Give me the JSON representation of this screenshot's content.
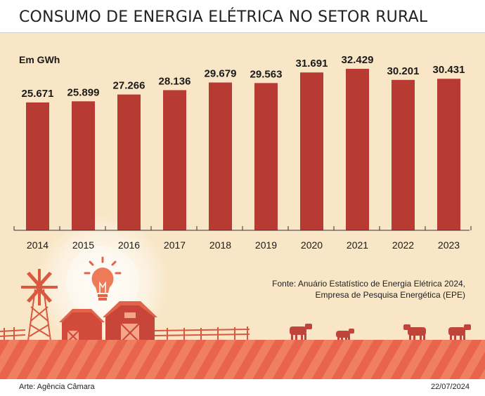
{
  "title": "CONSUMO DE ENERGIA ELÉTRICA NO SETOR RURAL",
  "unit_label": "Em GWh",
  "source": {
    "line1": "Fonte: Anuário Estatístico de Energia Elétrica 2024,",
    "line2": "Empresa de Pesquisa Energética (EPE)"
  },
  "credit": "Arte: Agência Câmara",
  "date": "22/07/2024",
  "colors": {
    "bar": "#b83b33",
    "background": "#f9e6c6",
    "illustration": "#e2634a"
  },
  "chart_data": {
    "type": "bar",
    "categories": [
      "2014",
      "2015",
      "2016",
      "2017",
      "2018",
      "2019",
      "2020",
      "2021",
      "2022",
      "2023"
    ],
    "values": [
      25671,
      25899,
      27266,
      28136,
      29679,
      29563,
      31691,
      32429,
      30201,
      30431
    ],
    "value_labels": [
      "25.671",
      "25.899",
      "27.266",
      "28.136",
      "29.679",
      "29.563",
      "31.691",
      "32.429",
      "30.201",
      "30.431"
    ],
    "title": "CONSUMO DE ENERGIA ELÉTRICA NO SETOR RURAL",
    "xlabel": "",
    "ylabel": "Em GWh",
    "ylim": [
      0,
      35000
    ],
    "grid": false
  }
}
